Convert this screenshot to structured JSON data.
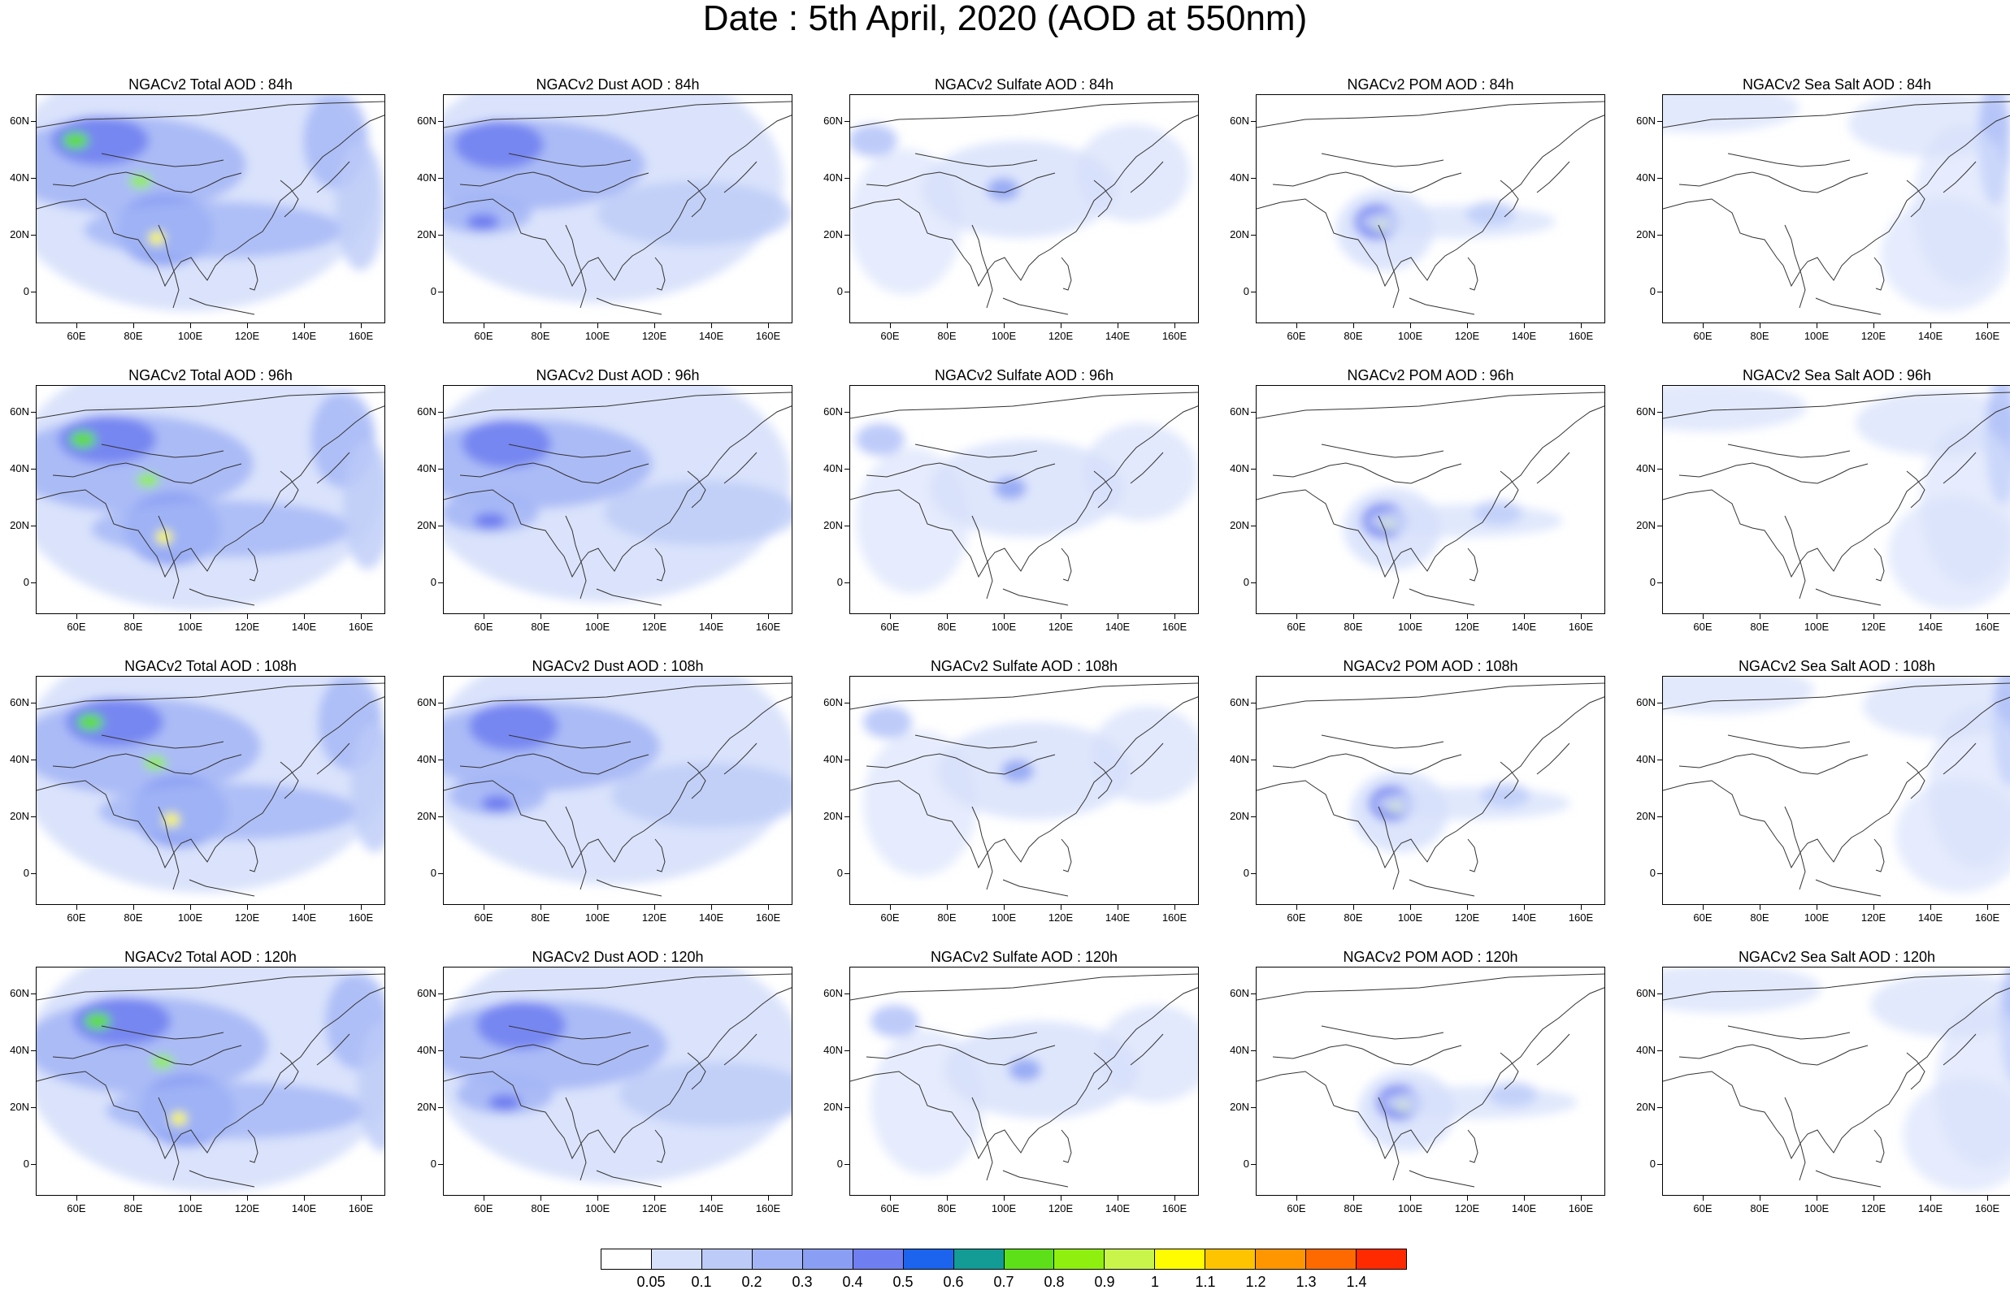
{
  "title": "Date : 5th April, 2020 (AOD at 550nm)",
  "panels": [
    [
      "NGACv2 Total AOD : 84h",
      "NGACv2 Dust AOD : 84h",
      "NGACv2 Sulfate AOD : 84h",
      "NGACv2 POM AOD : 84h",
      "NGACv2 Sea Salt AOD : 84h"
    ],
    [
      "NGACv2 Total AOD : 96h",
      "NGACv2 Dust AOD : 96h",
      "NGACv2 Sulfate AOD : 96h",
      "NGACv2 POM AOD : 96h",
      "NGACv2 Sea Salt AOD : 96h"
    ],
    [
      "NGACv2 Total AOD : 108h",
      "NGACv2 Dust AOD : 108h",
      "NGACv2 Sulfate AOD : 108h",
      "NGACv2 POM AOD : 108h",
      "NGACv2 Sea Salt AOD : 108h"
    ],
    [
      "NGACv2 Total AOD : 120h",
      "NGACv2 Dust AOD : 120h",
      "NGACv2 Sulfate AOD : 120h",
      "NGACv2 POM AOD : 120h",
      "NGACv2 Sea Salt  AOD : 120h"
    ]
  ],
  "lat_ticks": [
    "60N",
    "40N",
    "20N",
    "0"
  ],
  "lon_ticks": [
    "60E",
    "80E",
    "100E",
    "120E",
    "140E",
    "160E"
  ],
  "colorbar": {
    "labels": [
      "0.05",
      "0.1",
      "0.2",
      "0.3",
      "0.4",
      "0.5",
      "0.6",
      "0.7",
      "0.8",
      "0.9",
      "1",
      "1.1",
      "1.2",
      "1.3",
      "1.4"
    ],
    "colors": [
      "#ffffff",
      "#d6e0fb",
      "#bccbf8",
      "#a3b5f6",
      "#8a9ff3",
      "#6f7ef0",
      "#1c64ee",
      "#139b96",
      "#5ee018",
      "#8ff00f",
      "#c9f54a",
      "#fffc00",
      "#ffc400",
      "#ff9600",
      "#ff6a00",
      "#ff2a00"
    ]
  }
}
